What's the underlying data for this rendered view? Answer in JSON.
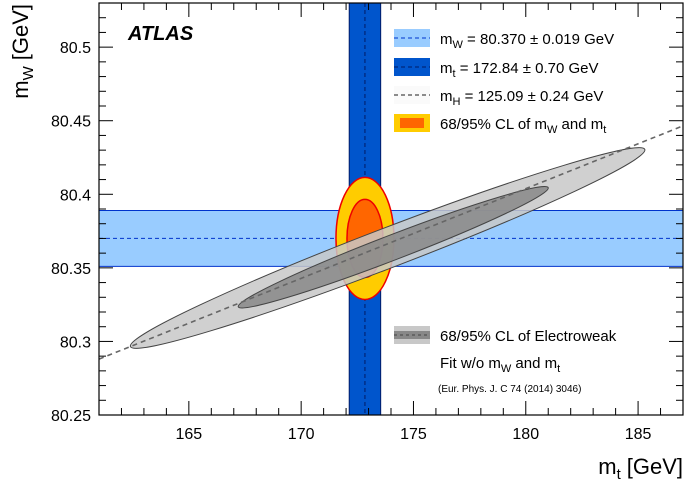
{
  "chart_data": {
    "type": "scatter",
    "xlabel": "m",
    "xlabel_sub": "t",
    "xlabel_unit": "[GeV]",
    "ylabel": "m",
    "ylabel_sub": "W",
    "ylabel_unit": "[GeV]",
    "xlim": [
      161,
      187
    ],
    "ylim": [
      80.25,
      80.53
    ],
    "xticks": [
      165,
      170,
      175,
      180,
      185
    ],
    "xtick_labels": [
      "165",
      "170",
      "175",
      "180",
      "185"
    ],
    "yticks": [
      80.25,
      80.3,
      80.35,
      80.4,
      80.45,
      80.5
    ],
    "ytick_labels": [
      "80.25",
      "80.3",
      "80.35",
      "80.4",
      "80.45",
      "80.5"
    ],
    "grid": false,
    "experiment_label": "ATLAS",
    "mw_band": {
      "central": 80.37,
      "uncertainty": 0.019,
      "color": "#99ccff",
      "line_color": "#0033cc"
    },
    "mt_band": {
      "central": 172.84,
      "uncertainty": 0.7,
      "color": "#0055cc",
      "line_color": "#001a66"
    },
    "mh_line": {
      "points": [
        [
          161,
          80.288
        ],
        [
          187,
          80.4465
        ]
      ],
      "color": "#666666"
    },
    "measurement_ellipses": {
      "center": [
        172.84,
        80.37
      ],
      "outer": {
        "rx": 1.29,
        "ry": 0.0415,
        "color": "#ffcc00",
        "border": "#ee0000"
      },
      "inner": {
        "rx": 0.8,
        "ry": 0.0265,
        "color": "#ff6600",
        "border": "#ee0000"
      }
    },
    "fit_ellipses": {
      "outer": {
        "endpoints": [
          [
            162.4,
            80.2965
          ],
          [
            185.3,
            80.4305
          ]
        ],
        "semi_minor": 0.0135,
        "color": "#c8c8c8"
      },
      "inner": {
        "endpoints": [
          [
            167.2,
            80.3235
          ],
          [
            181.0,
            80.4045
          ]
        ],
        "semi_minor": 0.0085,
        "color": "#888888"
      }
    },
    "legend": [
      {
        "symbol": "light-band",
        "text": "m",
        "sub": "W",
        "rest": " = 80.370 ± 0.019 GeV"
      },
      {
        "symbol": "dark-band",
        "text": "m",
        "sub": "t",
        "rest": " = 172.84 ± 0.70 GeV"
      },
      {
        "symbol": "dashed-line",
        "text": "m",
        "sub": "H",
        "rest": " = 125.09 ± 0.24 GeV"
      },
      {
        "symbol": "orange-box",
        "text": "68/95% CL of m",
        "sub": "W",
        "rest": " and m",
        "sub2": "t"
      }
    ],
    "legend2": {
      "line1": "68/95% CL of Electroweak",
      "line2_pre": "Fit w/o m",
      "line2_sub": "W",
      "line2_mid": " and m",
      "line2_sub2": "t",
      "line3": "(Eur. Phys. J. C 74 (2014) 3046)"
    }
  }
}
